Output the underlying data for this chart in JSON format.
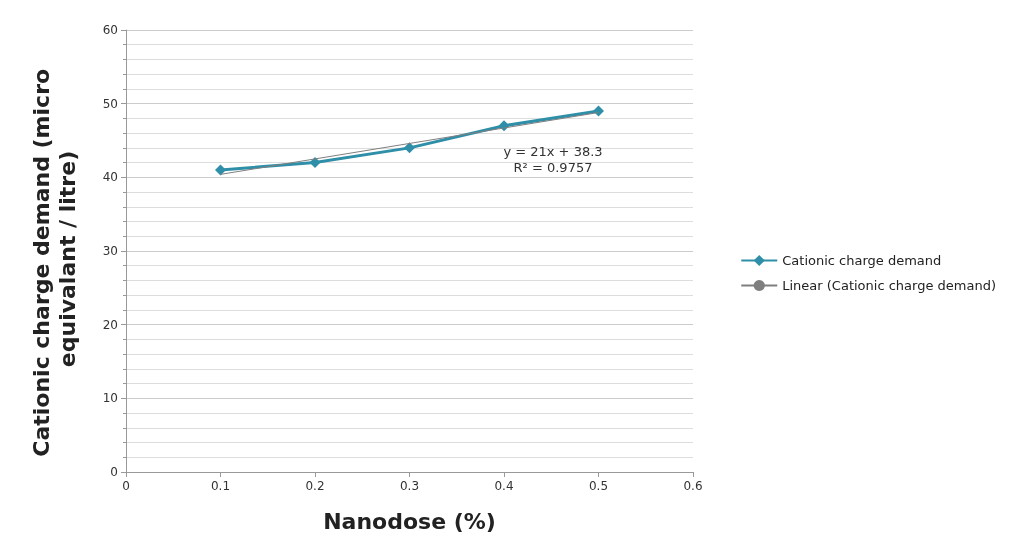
{
  "chart_data": {
    "type": "line",
    "xlabel": "Nanodose (%)",
    "ylabel": "Cationic charge demand (micro equivalant / litre)",
    "xlim": [
      0,
      0.6
    ],
    "xticks": [
      0,
      0.1,
      0.2,
      0.3,
      0.4,
      0.5,
      0.6
    ],
    "ylim": [
      0,
      60
    ],
    "yticks": [
      0,
      10,
      20,
      30,
      40,
      50,
      60
    ],
    "grid": "y",
    "legend": "right",
    "marker": "diamond",
    "line_style": "solid",
    "series": [
      {
        "name": "Cationic charge demand",
        "color": "#2f8fa8",
        "x": [
          0.1,
          0.2,
          0.3,
          0.4,
          0.5
        ],
        "values": [
          41,
          42,
          44,
          47,
          49
        ]
      },
      {
        "name": "Linear (Cationic charge demand)",
        "color": "#7f7f7f",
        "marker": "none",
        "x": [
          0.1,
          0.5
        ],
        "values": [
          40.4,
          48.8
        ]
      }
    ],
    "annotations": [
      "y = 21x + 38.3",
      "R² = 0.9757"
    ]
  }
}
